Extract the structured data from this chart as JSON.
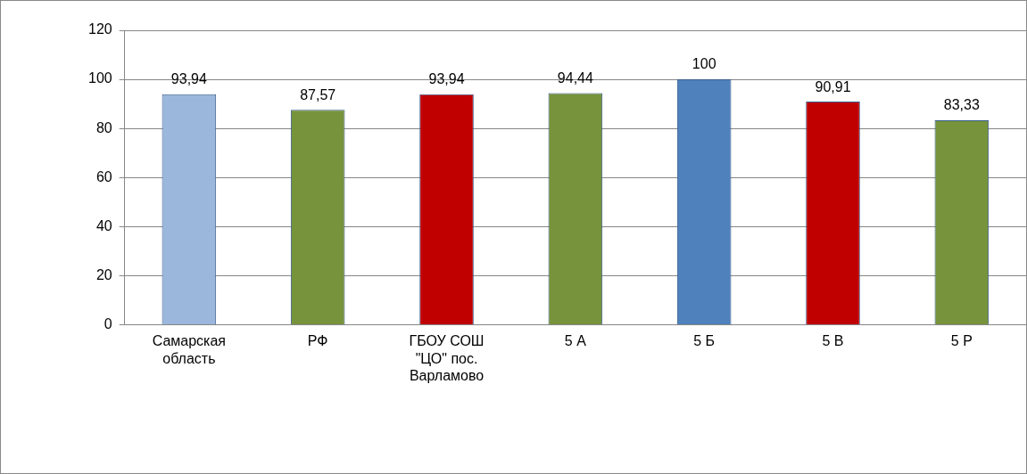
{
  "chart_data": {
    "type": "bar",
    "categories": [
      "Самарская область",
      "РФ",
      "ГБОУ СОШ \"ЦО\" пос. Варламово",
      "5 А",
      "5 Б",
      "5 В",
      "5 Р"
    ],
    "values": [
      93.94,
      87.57,
      93.94,
      94.44,
      100,
      90.91,
      83.33
    ],
    "colors": [
      "#9bb7dc",
      "#77933c",
      "#c00000",
      "#77933c",
      "#4f81bd",
      "#c00000",
      "#77933c"
    ],
    "value_labels": [
      "93,94",
      "87,57",
      "93,94",
      "94,44",
      "100",
      "90,91",
      "83,33"
    ],
    "ylim": [
      0,
      120
    ],
    "yticks": [
      0,
      20,
      40,
      60,
      80,
      100,
      120
    ],
    "grid": "y",
    "legend": false
  }
}
